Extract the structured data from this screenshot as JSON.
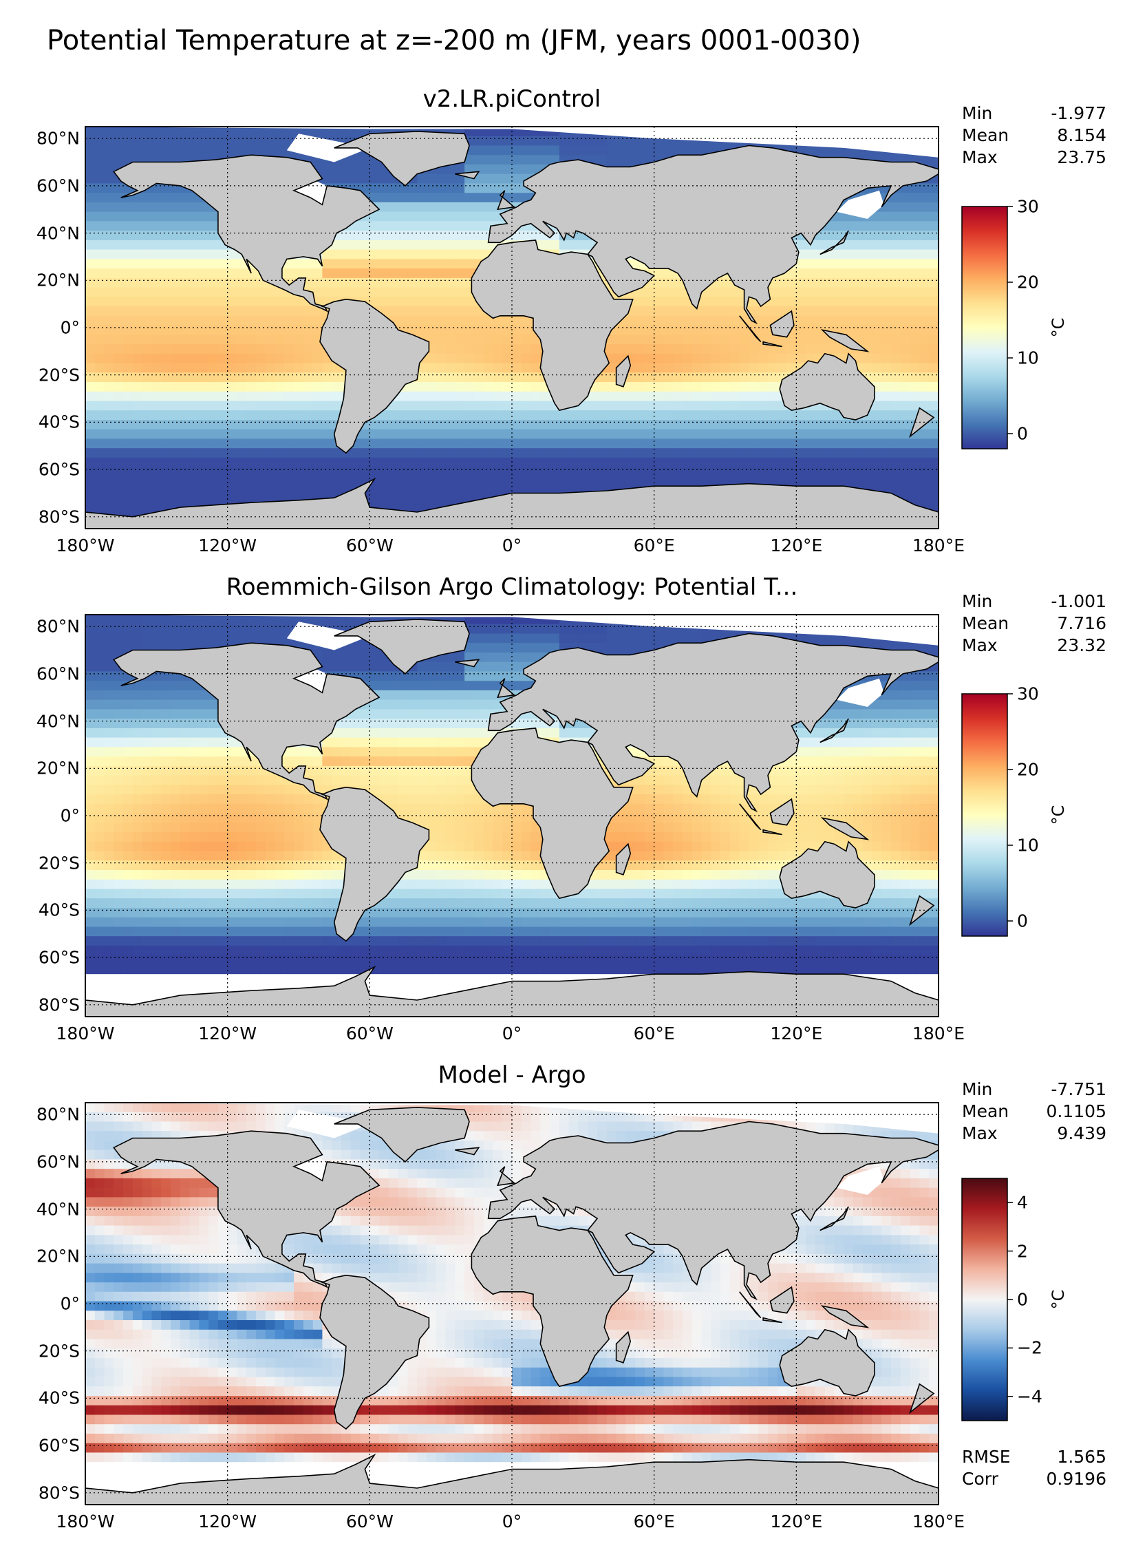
{
  "figure": {
    "suptitle": "Potential Temperature at z=-200 m (JFM, years 0001-0030)"
  },
  "x_ticks": [
    "180°W",
    "120°W",
    "60°W",
    "0°",
    "60°E",
    "120°E",
    "180°E"
  ],
  "y_ticks": [
    "80°N",
    "60°N",
    "40°N",
    "20°N",
    "0°",
    "20°S",
    "40°S",
    "60°S",
    "80°S"
  ],
  "colors": {
    "land": "#c8c8c8",
    "missing": "#ffffff",
    "cmap_temp": [
      "#313695",
      "#4575b4",
      "#74add1",
      "#abd9e9",
      "#e0f3f8",
      "#ffffbf",
      "#fee090",
      "#fdae61",
      "#f46d43",
      "#d73027",
      "#a50026"
    ],
    "cmap_diff": [
      "#0b1a4a",
      "#1a4fa0",
      "#4a8cd0",
      "#a9cbe8",
      "#f4f4f4",
      "#f2b4a0",
      "#d35c46",
      "#a51a20",
      "#4a0a12"
    ]
  },
  "chart_data": [
    {
      "type": "heatmap",
      "title": "v2.LR.piControl",
      "field": "model",
      "stats": [
        {
          "label": "Min",
          "value": "-1.977"
        },
        {
          "label": "Mean",
          "value": "8.154"
        },
        {
          "label": "Max",
          "value": "23.75"
        }
      ],
      "colorbar": {
        "vmin": -2,
        "vmax": 30,
        "ticks": [
          "30",
          "20",
          "10",
          "0"
        ],
        "tick_values": [
          30,
          20,
          10,
          0
        ],
        "unit": "°C",
        "cmap": "temp"
      },
      "xlim": [
        -180,
        180
      ],
      "ylim": [
        -85,
        85
      ]
    },
    {
      "type": "heatmap",
      "title": "Roemmich-Gilson Argo Climatology: Potential T...",
      "field": "obs",
      "stats": [
        {
          "label": "Min",
          "value": "-1.001"
        },
        {
          "label": "Mean",
          "value": "7.716"
        },
        {
          "label": "Max",
          "value": "23.32"
        }
      ],
      "colorbar": {
        "vmin": -2,
        "vmax": 30,
        "ticks": [
          "30",
          "20",
          "10",
          "0"
        ],
        "tick_values": [
          30,
          20,
          10,
          0
        ],
        "unit": "°C",
        "cmap": "temp"
      },
      "xlim": [
        -180,
        180
      ],
      "ylim": [
        -85,
        85
      ]
    },
    {
      "type": "heatmap",
      "title": "Model - Argo",
      "field": "diff",
      "stats": [
        {
          "label": "Min",
          "value": "-7.751"
        },
        {
          "label": "Mean",
          "value": "0.1105"
        },
        {
          "label": "Max",
          "value": "9.439"
        }
      ],
      "bottom_stats": [
        {
          "label": "RMSE",
          "value": "1.565"
        },
        {
          "label": "Corr",
          "value": "0.9196"
        }
      ],
      "colorbar": {
        "vmin": -5,
        "vmax": 5,
        "ticks": [
          "4",
          "2",
          "0",
          "−2",
          "−4"
        ],
        "tick_values": [
          4,
          2,
          0,
          -2,
          -4
        ],
        "unit": "°C",
        "cmap": "diff"
      },
      "xlim": [
        -180,
        180
      ],
      "ylim": [
        -85,
        85
      ]
    }
  ]
}
